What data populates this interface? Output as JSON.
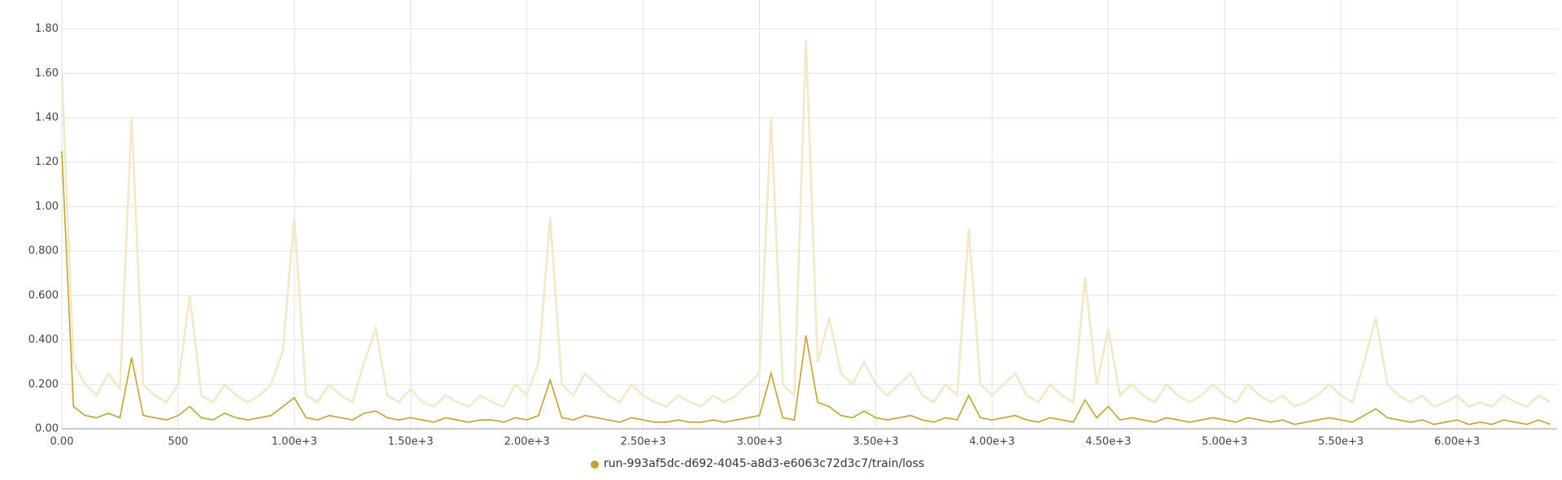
{
  "chart_data": {
    "type": "line",
    "x": [
      0,
      50,
      100,
      150,
      200,
      250,
      300,
      350,
      400,
      450,
      500,
      550,
      600,
      650,
      700,
      750,
      800,
      850,
      900,
      950,
      1000,
      1050,
      1100,
      1150,
      1200,
      1250,
      1300,
      1350,
      1400,
      1450,
      1500,
      1550,
      1600,
      1650,
      1700,
      1750,
      1800,
      1850,
      1900,
      1950,
      2000,
      2050,
      2100,
      2150,
      2200,
      2250,
      2300,
      2350,
      2400,
      2450,
      2500,
      2550,
      2600,
      2650,
      2700,
      2750,
      2800,
      2850,
      2900,
      2950,
      3000,
      3050,
      3100,
      3150,
      3200,
      3250,
      3300,
      3350,
      3400,
      3450,
      3500,
      3550,
      3600,
      3650,
      3700,
      3750,
      3800,
      3850,
      3900,
      3950,
      4000,
      4050,
      4100,
      4150,
      4200,
      4250,
      4300,
      4350,
      4400,
      4450,
      4500,
      4550,
      4600,
      4650,
      4700,
      4750,
      4800,
      4850,
      4900,
      4950,
      5000,
      5050,
      5100,
      5150,
      5200,
      5250,
      5300,
      5350,
      5400,
      5450,
      5500,
      5550,
      5600,
      5650,
      5700,
      5750,
      5800,
      5850,
      5900,
      5950,
      6000,
      6050,
      6100,
      6150,
      6200,
      6250,
      6300,
      6350,
      6400
    ],
    "series": [
      {
        "color": "#f3e7c6",
        "values": [
          1.6,
          0.3,
          0.2,
          0.15,
          0.25,
          0.18,
          1.4,
          0.2,
          0.15,
          0.12,
          0.2,
          0.6,
          0.15,
          0.12,
          0.2,
          0.15,
          0.12,
          0.15,
          0.2,
          0.35,
          0.95,
          0.15,
          0.12,
          0.2,
          0.15,
          0.12,
          0.3,
          0.45,
          0.15,
          0.12,
          0.18,
          0.12,
          0.1,
          0.15,
          0.12,
          0.1,
          0.15,
          0.12,
          0.1,
          0.2,
          0.15,
          0.3,
          0.95,
          0.2,
          0.15,
          0.25,
          0.2,
          0.15,
          0.12,
          0.2,
          0.15,
          0.12,
          0.1,
          0.15,
          0.12,
          0.1,
          0.15,
          0.12,
          0.15,
          0.2,
          0.25,
          1.4,
          0.2,
          0.15,
          1.75,
          0.3,
          0.5,
          0.25,
          0.2,
          0.3,
          0.2,
          0.15,
          0.2,
          0.25,
          0.15,
          0.12,
          0.2,
          0.15,
          0.9,
          0.2,
          0.15,
          0.2,
          0.25,
          0.15,
          0.12,
          0.2,
          0.15,
          0.12,
          0.68,
          0.2,
          0.45,
          0.15,
          0.2,
          0.15,
          0.12,
          0.2,
          0.15,
          0.12,
          0.15,
          0.2,
          0.15,
          0.12,
          0.2,
          0.15,
          0.12,
          0.15,
          0.1,
          0.12,
          0.15,
          0.2,
          0.15,
          0.12,
          0.3,
          0.5,
          0.2,
          0.15,
          0.12,
          0.15,
          0.1,
          0.12,
          0.15,
          0.1,
          0.12,
          0.1,
          0.15,
          0.12,
          0.1,
          0.15,
          0.12
        ]
      },
      {
        "name": "run-993af5dc-d692-4045-a8d3-e6063c72d3c7/train/loss",
        "color": "#c4a32b",
        "values": [
          1.25,
          0.1,
          0.06,
          0.05,
          0.07,
          0.05,
          0.32,
          0.06,
          0.05,
          0.04,
          0.06,
          0.1,
          0.05,
          0.04,
          0.07,
          0.05,
          0.04,
          0.05,
          0.06,
          0.1,
          0.14,
          0.05,
          0.04,
          0.06,
          0.05,
          0.04,
          0.07,
          0.08,
          0.05,
          0.04,
          0.05,
          0.04,
          0.03,
          0.05,
          0.04,
          0.03,
          0.04,
          0.04,
          0.03,
          0.05,
          0.04,
          0.06,
          0.22,
          0.05,
          0.04,
          0.06,
          0.05,
          0.04,
          0.03,
          0.05,
          0.04,
          0.03,
          0.03,
          0.04,
          0.03,
          0.03,
          0.04,
          0.03,
          0.04,
          0.05,
          0.06,
          0.25,
          0.05,
          0.04,
          0.42,
          0.12,
          0.1,
          0.06,
          0.05,
          0.08,
          0.05,
          0.04,
          0.05,
          0.06,
          0.04,
          0.03,
          0.05,
          0.04,
          0.15,
          0.05,
          0.04,
          0.05,
          0.06,
          0.04,
          0.03,
          0.05,
          0.04,
          0.03,
          0.13,
          0.05,
          0.1,
          0.04,
          0.05,
          0.04,
          0.03,
          0.05,
          0.04,
          0.03,
          0.04,
          0.05,
          0.04,
          0.03,
          0.05,
          0.04,
          0.03,
          0.04,
          0.02,
          0.03,
          0.04,
          0.05,
          0.04,
          0.03,
          0.06,
          0.09,
          0.05,
          0.04,
          0.03,
          0.04,
          0.02,
          0.03,
          0.04,
          0.02,
          0.03,
          0.02,
          0.04,
          0.03,
          0.02,
          0.04,
          0.02
        ]
      }
    ],
    "xlim": [
      0,
      6430
    ],
    "ylim": [
      0,
      1.93
    ],
    "xticks": [
      {
        "value": 0,
        "label": "0.00"
      },
      500,
      {
        "value": 1000,
        "label": "1.00e+3"
      },
      {
        "value": 1500,
        "label": "1.50e+3"
      },
      {
        "value": 2000,
        "label": "2.00e+3"
      },
      {
        "value": 2500,
        "label": "2.50e+3"
      },
      {
        "value": 3000,
        "label": "3.00e+3"
      },
      {
        "value": 3500,
        "label": "3.50e+3"
      },
      {
        "value": 4000,
        "label": "4.00e+3"
      },
      {
        "value": 4500,
        "label": "4.50e+3"
      },
      {
        "value": 5000,
        "label": "5.00e+3"
      },
      {
        "value": 5500,
        "label": "5.50e+3"
      },
      {
        "value": 6000,
        "label": "6.00e+3"
      }
    ],
    "yticks": [
      {
        "value": 0,
        "label": "0.00"
      },
      {
        "value": 0.2,
        "label": "0.200"
      },
      {
        "value": 0.4,
        "label": "0.400"
      },
      {
        "value": 0.6,
        "label": "0.600"
      },
      {
        "value": 0.8,
        "label": "0.800"
      },
      {
        "value": 1,
        "label": "1.00"
      },
      {
        "value": 1.2,
        "label": "1.20"
      },
      {
        "value": 1.4,
        "label": "1.40"
      },
      {
        "value": 1.6,
        "label": "1.60"
      },
      {
        "value": 1.8,
        "label": "1.80"
      }
    ],
    "grid": true
  }
}
